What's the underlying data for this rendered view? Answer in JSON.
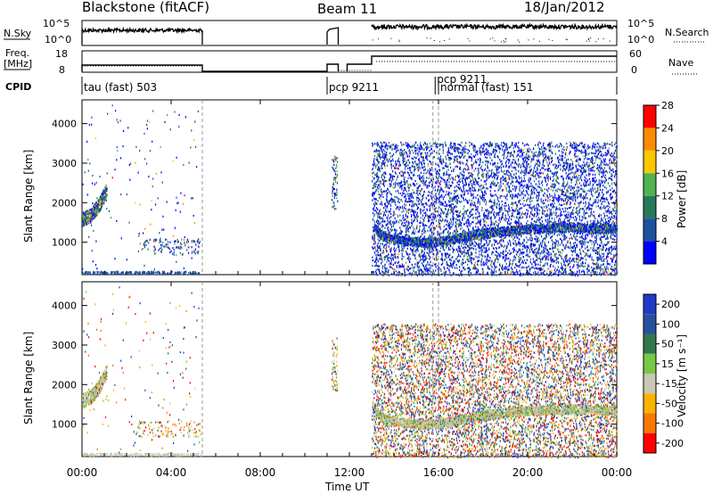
{
  "header": {
    "station": "Blackstone (fitACF)",
    "beam": "Beam 11",
    "date": "18/Jan/2012"
  },
  "strip_labels": {
    "nsky": "N.Sky",
    "nsky_ticks": [
      "10^5",
      "10^0"
    ],
    "nsearch": "N.Search",
    "nsearch_ticks": [
      "10^5",
      "10^0"
    ],
    "freq_line1": "Freq.",
    "freq_line2": "[MHz]",
    "freq_ticks": [
      "18",
      "8"
    ],
    "nave": "Nave",
    "nave_ticks": [
      "60",
      "0"
    ],
    "cpid": "CPID"
  },
  "cpid_segments": [
    {
      "label": "tau (fast) 503",
      "start_h": 0.0,
      "end_h": 5.35
    },
    {
      "label": "pcp 9211",
      "start_h": 11.0,
      "end_h": 15.75
    },
    {
      "label": "pcp 9211",
      "start_h": 15.85,
      "end_h": 16.0
    },
    {
      "label": "normal (fast) 151",
      "start_h": 16.0,
      "end_h": 24.0
    }
  ],
  "x_axis": {
    "label": "Time UT",
    "ticks": [
      "00:00",
      "04:00",
      "08:00",
      "12:00",
      "16:00",
      "20:00",
      "00:00"
    ],
    "range_h": [
      0,
      24
    ]
  },
  "power_panel": {
    "ylabel": "Slant Range [km]",
    "yticks": [
      "1000",
      "2000",
      "3000",
      "4000"
    ],
    "colorbar_label": "Power [dB]",
    "colorbar_ticks": [
      "4",
      "8",
      "12",
      "16",
      "20",
      "24",
      "28"
    ],
    "colors": [
      "#0000ff",
      "#1e50a0",
      "#28785a",
      "#50b450",
      "#fac800",
      "#fa8c00",
      "#ff0000"
    ]
  },
  "velocity_panel": {
    "ylabel": "Slant Range [km]",
    "yticks": [
      "1000",
      "2000",
      "3000",
      "4000"
    ],
    "colorbar_label": "Velocity [m s⁻¹]",
    "colorbar_ticks": [
      "200",
      "100",
      "50",
      "15",
      "-15",
      "-50",
      "-100",
      "-200"
    ],
    "colors": [
      "#1e3cc8",
      "#2850a0",
      "#32784b",
      "#78c846",
      "#c8c8b4",
      "#fab400",
      "#fa7800",
      "#ff0000"
    ]
  },
  "chart_data": {
    "type": "heatmap",
    "title": "Blackstone (fitACF) Beam 11 18/Jan/2012",
    "xlabel": "Time UT",
    "ylabel": "Slant Range [km]",
    "xlim_hours": [
      0,
      24
    ],
    "ylim_km": [
      180,
      4600
    ],
    "x_tick_labels": [
      "00:00",
      "04:00",
      "08:00",
      "12:00",
      "16:00",
      "20:00",
      "00:00"
    ],
    "y_tick_labels": [
      1000,
      2000,
      3000,
      4000
    ],
    "data_gaps_hours": [
      [
        5.4,
        11.0
      ],
      [
        11.5,
        13.0
      ]
    ],
    "dense_echo_block": {
      "start_h": 13.0,
      "end_h": 24.0,
      "range_km": [
        180,
        3550
      ]
    },
    "ground_scatter_band_km": [
      {
        "t": 13.1,
        "km": 1400
      },
      {
        "t": 13.5,
        "km": 1150
      },
      {
        "t": 14.5,
        "km": 1050
      },
      {
        "t": 15.5,
        "km": 1000
      },
      {
        "t": 16.5,
        "km": 1080
      },
      {
        "t": 18.0,
        "km": 1250
      },
      {
        "t": 20.0,
        "km": 1350
      },
      {
        "t": 22.0,
        "km": 1400
      },
      {
        "t": 24.0,
        "km": 1350
      }
    ],
    "early_echo_band_km": [
      {
        "t": 0.0,
        "km": 1600
      },
      {
        "t": 0.4,
        "km": 1700
      },
      {
        "t": 0.8,
        "km": 2000
      },
      {
        "t": 1.1,
        "km": 2350
      }
    ],
    "power_colorbar_dB": [
      4,
      8,
      12,
      16,
      20,
      24,
      28
    ],
    "velocity_colorbar_ms": [
      -200,
      -100,
      -50,
      -15,
      15,
      50,
      100,
      200
    ],
    "frequency_MHz": {
      "0-5.4h": 10,
      "11-11.5h": 11,
      "13-24h": 15
    },
    "nave": {
      "13-24h": 35
    }
  }
}
